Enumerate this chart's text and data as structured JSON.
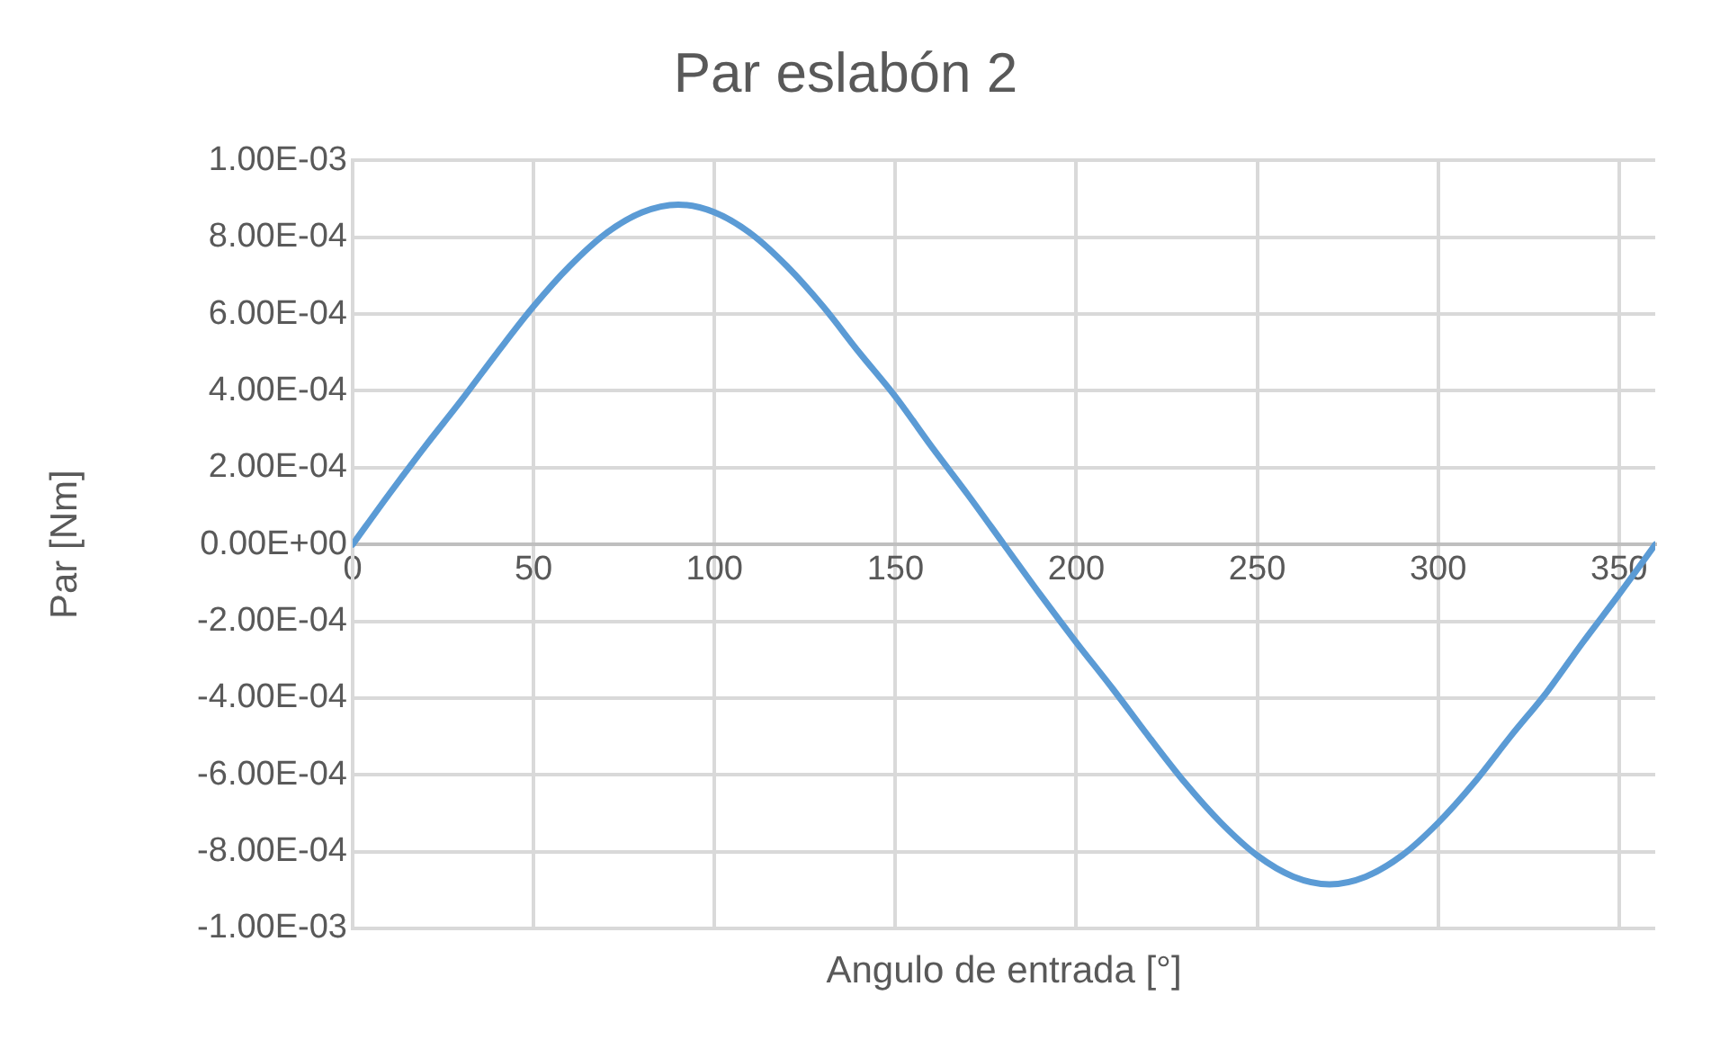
{
  "chart_data": {
    "type": "line",
    "title": "Par eslabón 2",
    "xlabel": "Angulo de entrada [°]",
    "ylabel": "Par [Nm]",
    "x": [
      0,
      10,
      20,
      30,
      40,
      50,
      60,
      70,
      80,
      90,
      100,
      110,
      120,
      130,
      140,
      150,
      160,
      170,
      180,
      190,
      200,
      210,
      220,
      230,
      240,
      250,
      260,
      270,
      280,
      290,
      300,
      310,
      320,
      330,
      340,
      350,
      360
    ],
    "series": [
      {
        "color": "#5b9bd5",
        "values": [
          0,
          0.00013,
          0.000255,
          0.000375,
          0.0005,
          0.00062,
          0.000725,
          0.00081,
          0.000865,
          0.000885,
          0.000865,
          0.00081,
          0.000725,
          0.00062,
          0.0005,
          0.000385,
          0.000255,
          0.00013,
          0,
          -0.00013,
          -0.000255,
          -0.000375,
          -0.0005,
          -0.00062,
          -0.000725,
          -0.00081,
          -0.000865,
          -0.000885,
          -0.000865,
          -0.00081,
          -0.000725,
          -0.00062,
          -0.0005,
          -0.000385,
          -0.000255,
          -0.00013,
          0
        ]
      }
    ],
    "xlim": [
      0,
      360
    ],
    "xticks": [
      0,
      50,
      100,
      150,
      200,
      250,
      300,
      350
    ],
    "ylim": [
      -0.001,
      0.001
    ],
    "yticks": [
      {
        "value": -0.001,
        "label": "-1.00E-03"
      },
      {
        "value": -0.0008,
        "label": "-8.00E-04"
      },
      {
        "value": -0.0006,
        "label": "-6.00E-04"
      },
      {
        "value": -0.0004,
        "label": "-4.00E-04"
      },
      {
        "value": -0.0002,
        "label": "-2.00E-04"
      },
      {
        "value": 0,
        "label": "0.00E+00"
      },
      {
        "value": 0.0002,
        "label": "2.00E-04"
      },
      {
        "value": 0.0004,
        "label": "4.00E-04"
      },
      {
        "value": 0.0006,
        "label": "6.00E-04"
      },
      {
        "value": 0.0008,
        "label": "8.00E-04"
      },
      {
        "value": 0.001,
        "label": "1.00E-03"
      }
    ],
    "grid": true,
    "legend": false,
    "marker": "none",
    "line_style": "solid"
  }
}
